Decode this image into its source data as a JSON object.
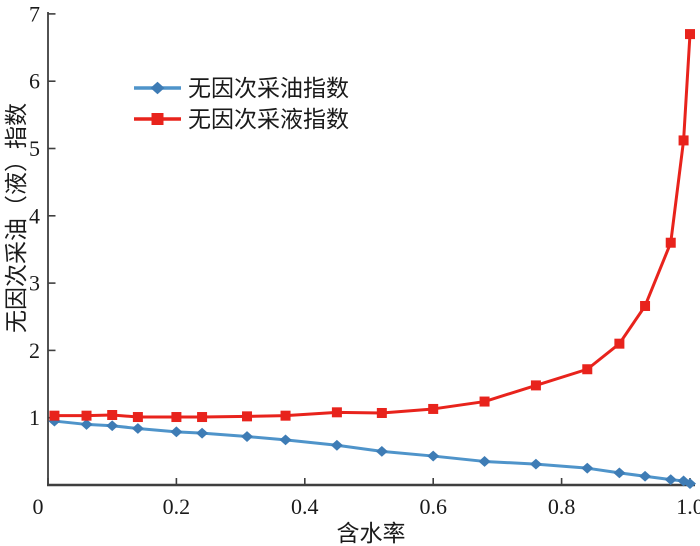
{
  "figure": {
    "background": "#ffffff"
  },
  "colors": {
    "axis": "#3f3f3f",
    "text": "#1a1a1a"
  },
  "chart_data": {
    "type": "line",
    "title": "",
    "xlabel": "含水率",
    "ylabel": "无因次采油（液）指数",
    "xlim": [
      0,
      1.0
    ],
    "ylim": [
      0,
      7
    ],
    "grid": false,
    "legend_position": "upper-left-inside",
    "x_tick_labels": [
      "0",
      "0.2",
      "0.4",
      "0.6",
      "0.8",
      "1.0"
    ],
    "x_tick_values": [
      0,
      0.2,
      0.4,
      0.6,
      0.8,
      1.0
    ],
    "y_tick_labels": [
      "1",
      "2",
      "3",
      "4",
      "5",
      "6",
      "7"
    ],
    "y_tick_values": [
      1,
      2,
      3,
      4,
      5,
      6,
      7
    ],
    "x": [
      0.01,
      0.06,
      0.1,
      0.14,
      0.2,
      0.24,
      0.31,
      0.37,
      0.45,
      0.52,
      0.6,
      0.68,
      0.76,
      0.84,
      0.89,
      0.93,
      0.97,
      0.99,
      1.0
    ],
    "series": [
      {
        "id": "oil-index",
        "name": "无因次采油指数",
        "marker": "diamond",
        "line_color": "#4f94ca",
        "marker_color": "#3e7cb5",
        "values": [
          0.95,
          0.9,
          0.88,
          0.84,
          0.79,
          0.77,
          0.72,
          0.67,
          0.59,
          0.5,
          0.43,
          0.35,
          0.31,
          0.25,
          0.18,
          0.13,
          0.08,
          0.06,
          0.02
        ]
      },
      {
        "id": "liquid-index",
        "name": "无因次采液指数",
        "marker": "square",
        "line_color": "#e8231c",
        "marker_color": "#e8231c",
        "values": [
          1.03,
          1.03,
          1.04,
          1.01,
          1.01,
          1.01,
          1.02,
          1.03,
          1.08,
          1.07,
          1.13,
          1.24,
          1.48,
          1.72,
          2.1,
          2.66,
          3.6,
          5.12,
          6.7
        ]
      }
    ]
  }
}
